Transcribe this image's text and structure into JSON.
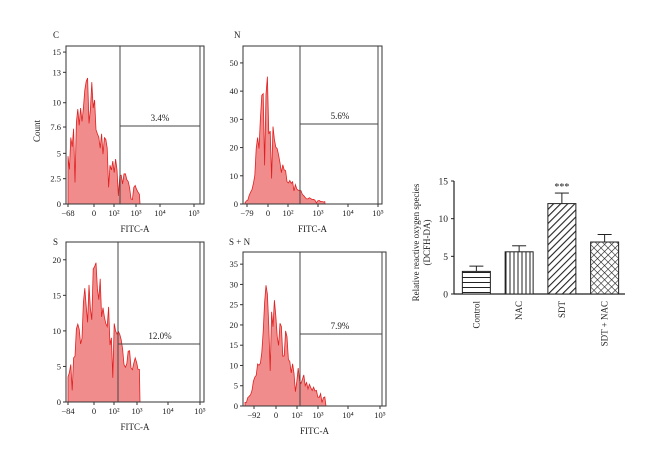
{
  "colors": {
    "histogram_fill": "#f08c8c",
    "histogram_edge": "#e02020",
    "axis": "#333333",
    "gate_line": "#444444"
  },
  "chart_data": [
    {
      "type": "histogram",
      "panel_label": "C",
      "xlabel": "FITC-A",
      "ylabel": "Count",
      "x_ticks": [
        "−68",
        "0",
        "10²",
        "10³",
        "10⁴",
        "10⁵"
      ],
      "y_ticks": [
        "0",
        "2.5",
        "5",
        "7.6",
        "10",
        "13",
        "15"
      ],
      "ylim": [
        0,
        15.6
      ],
      "gate_percent": "3.4%",
      "grid": false
    },
    {
      "type": "histogram",
      "panel_label": "N",
      "xlabel": "FITC-A",
      "ylabel": "",
      "x_ticks": [
        "−79",
        "0",
        "10²",
        "10³",
        "10⁴",
        "10⁵"
      ],
      "y_ticks": [
        "0",
        "10",
        "20",
        "30",
        "40",
        "50"
      ],
      "ylim": [
        0,
        56
      ],
      "gate_percent": "5.6%",
      "grid": false
    },
    {
      "type": "histogram",
      "panel_label": "S",
      "xlabel": "FITC-A",
      "ylabel": "",
      "x_ticks": [
        "−84",
        "0",
        "10²",
        "10³",
        "10⁴",
        "10⁵"
      ],
      "y_ticks": [
        "0",
        "5",
        "10",
        "15",
        "20"
      ],
      "ylim": [
        0,
        22.5
      ],
      "gate_percent": "12.0%",
      "grid": false
    },
    {
      "type": "histogram",
      "panel_label": "S + N",
      "xlabel": "FITC-A",
      "ylabel": "",
      "x_ticks": [
        "−92",
        "0",
        "10²",
        "10³",
        "10⁴",
        "10⁵"
      ],
      "y_ticks": [
        "0",
        "5",
        "10",
        "15",
        "20",
        "25",
        "30",
        "35"
      ],
      "ylim": [
        0,
        38
      ],
      "gate_percent": "7.9%",
      "grid": false
    },
    {
      "type": "bar",
      "categories": [
        "Control",
        "NAC",
        "SDT",
        "SDT + NAC"
      ],
      "values": [
        3.0,
        5.6,
        12.0,
        6.9
      ],
      "errors": [
        0.7,
        0.8,
        1.4,
        1.0
      ],
      "patterns": [
        "horizontal",
        "vertical",
        "diagonal",
        "crosshatch"
      ],
      "significance": [
        "",
        "",
        "***",
        ""
      ],
      "ylabel": "Relative reactive oxygen species (DCFH-DA)",
      "ylabel_lines": [
        "Relative reactive oxygen species",
        "(DCFH-DA)"
      ],
      "y_ticks": [
        0,
        5,
        10,
        15
      ],
      "ylim": [
        0,
        15
      ],
      "grid": false
    }
  ]
}
